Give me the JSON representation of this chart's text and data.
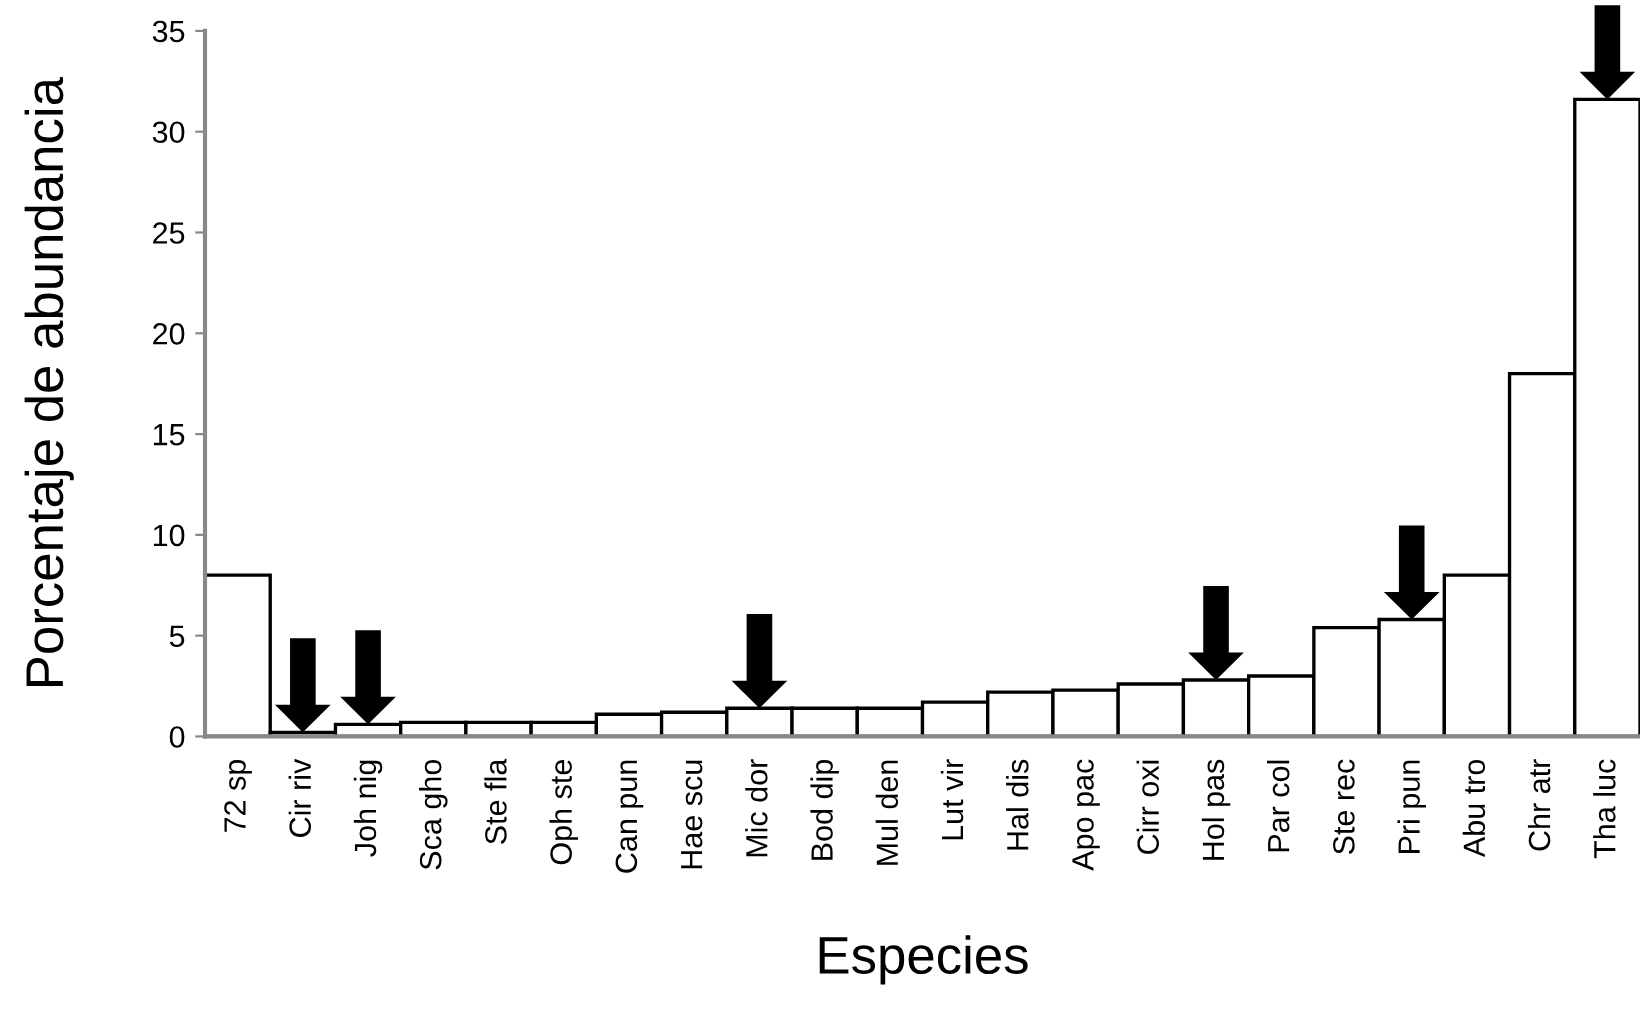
{
  "chart_data": {
    "type": "bar",
    "xlabel": "Especies",
    "ylabel": "Porcentaje de abundancia",
    "categories": [
      "72 sp",
      "Cir riv",
      "Joh nig",
      "Sca gho",
      "Ste fla",
      "Oph ste",
      "Can pun",
      "Hae scu",
      "Mic dor",
      "Bod dip",
      "Mul den",
      "Lut vir",
      "Hal dis",
      "Apo pac",
      "Cirr oxi",
      "Hol pas",
      "Par col",
      "Ste rec",
      "Pri pun",
      "Abu tro",
      "Chr atr",
      "Tha luc"
    ],
    "values": [
      8.0,
      0.2,
      0.6,
      0.7,
      0.7,
      0.7,
      1.1,
      1.2,
      1.4,
      1.4,
      1.4,
      1.7,
      2.2,
      2.3,
      2.6,
      2.8,
      3.0,
      5.4,
      5.8,
      8.0,
      18.0,
      31.6
    ],
    "color": "#ffffff",
    "ylim": [
      0,
      35
    ],
    "yticks": [
      0,
      5,
      10,
      15,
      20,
      25,
      30,
      35
    ],
    "grid": false,
    "legend": false
  }
}
